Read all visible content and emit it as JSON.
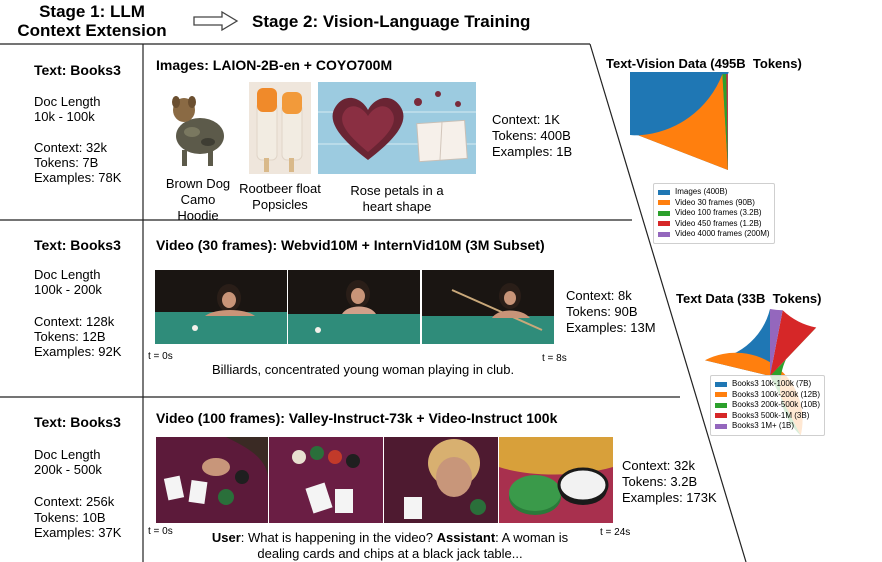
{
  "header": {
    "stage1": "Stage 1: LLM\nContext Extension",
    "stage2": "Stage 2: Vision-Language Training"
  },
  "rows": [
    {
      "text_title": "Text: Books3",
      "doc_length_label": "Doc Length",
      "doc_length": "10k - 100k",
      "context": "Context: 32k",
      "tokens": "Tokens: 7B",
      "examples": "Examples: 78K",
      "vision_title": "Images: LAION-2B-en + COYO700M",
      "captions": [
        "Brown Dog\nCamo\nHoodie",
        "Rootbeer float\nPopsicles",
        "Rose petals in a\nheart shape"
      ],
      "stat_context": "Context: 1K",
      "stat_tokens": "Tokens: 400B",
      "stat_examples": "Examples: 1B"
    },
    {
      "text_title": "Text: Books3",
      "doc_length_label": "Doc Length",
      "doc_length": "100k - 200k",
      "context": "Context: 128k",
      "tokens": "Tokens: 12B",
      "examples": "Examples: 92K",
      "vision_title": "Video (30 frames): Webvid10M + InternVid10M (3M Subset)",
      "t_start": "t = 0s",
      "t_end": "t = 8s",
      "caption": "Billiards, concentrated young woman playing in club.",
      "stat_context": "Context: 8k",
      "stat_tokens": "Tokens: 90B",
      "stat_examples": "Examples: 13M"
    },
    {
      "text_title": "Text: Books3",
      "doc_length_label": "Doc Length",
      "doc_length": "200k - 500k",
      "context": "Context: 256k",
      "tokens": "Tokens: 10B",
      "examples": "Examples: 37K",
      "vision_title": "Video (100 frames): Valley-Instruct-73k + Video-Instruct 100k",
      "t_start": "t = 0s",
      "t_end": "t = 24s",
      "qa_user": "User",
      "qa_q": ": What is happening in the video? ",
      "qa_assistant": "Assistant",
      "qa_a": ": A woman is dealing cards and chips at a black jack table...",
      "stat_context": "Context: 32k",
      "stat_tokens": "Tokens: 3.2B",
      "stat_examples": "Examples: 173K"
    }
  ],
  "pies": [
    {
      "title": "Text-Vision Data (495B  Tokens)",
      "chart_data": {
        "type": "pie",
        "labels": [
          "Images (400B)",
          "Video 30 frames (90B)",
          "Video 100 frames (3.2B)",
          "Video 450 frames (1.2B)",
          "Video 4000 frames (200M)"
        ],
        "values": [
          400,
          90,
          3.2,
          1.2,
          0.2
        ],
        "colors": [
          "#1f77b4",
          "#ff7f0e",
          "#2ca02c",
          "#d62728",
          "#9467bd"
        ]
      }
    },
    {
      "title": "Text Data (33B  Tokens)",
      "chart_data": {
        "type": "pie",
        "labels": [
          "Books3 10k-100k (7B)",
          "Books3 100k-200k (12B)",
          "Books3 200k-500k (10B)",
          "Books3 500k-1M (3B)",
          "Books3 1M+ (1B)"
        ],
        "values": [
          7,
          12,
          10,
          3,
          1
        ],
        "colors": [
          "#1f77b4",
          "#ff7f0e",
          "#2ca02c",
          "#d62728",
          "#9467bd"
        ]
      }
    }
  ]
}
